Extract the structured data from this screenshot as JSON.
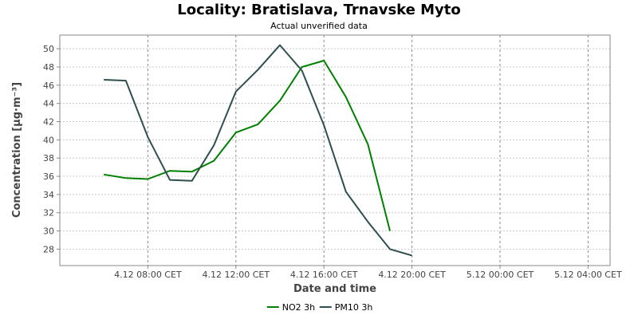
{
  "chart_data": {
    "type": "line",
    "title": "Locality: Bratislava, Trnavske Myto",
    "subtitle": "Actual unverified data",
    "xlabel": "Date and time",
    "ylabel": "Concentration [µg·m⁻³]",
    "x_tick_labels": [
      "4.12 08:00 CET",
      "4.12 12:00 CET",
      "4.12 16:00 CET",
      "4.12 20:00 CET",
      "5.12 00:00 CET",
      "5.12 04:00 CET"
    ],
    "x_tick_hours": [
      8,
      12,
      16,
      20,
      24,
      28
    ],
    "xlim_hours": [
      4,
      29.0
    ],
    "y_ticks": [
      28,
      30,
      32,
      34,
      36,
      38,
      40,
      42,
      44,
      46,
      48,
      50
    ],
    "ylim": [
      26.2,
      51.5
    ],
    "grid": true,
    "legend_position": "bottom",
    "series": [
      {
        "name": "NO2 3h",
        "color": "#008000",
        "x_hours": [
          6,
          7,
          8,
          9,
          10,
          11,
          12,
          13,
          14,
          15,
          16,
          17,
          18,
          19
        ],
        "values": [
          36.2,
          35.8,
          35.7,
          36.6,
          36.5,
          37.7,
          40.8,
          41.7,
          44.3,
          48.0,
          48.7,
          44.7,
          39.5,
          30.0
        ]
      },
      {
        "name": "PM10 3h",
        "color": "#2f4f4f",
        "x_hours": [
          6,
          7,
          8,
          9,
          10,
          11,
          12,
          13,
          14,
          15,
          16,
          17,
          18,
          19,
          20
        ],
        "values": [
          46.6,
          46.5,
          40.3,
          35.6,
          35.5,
          39.4,
          45.3,
          47.7,
          50.4,
          47.6,
          41.6,
          34.3,
          31.0,
          28.0,
          27.3
        ]
      }
    ]
  }
}
